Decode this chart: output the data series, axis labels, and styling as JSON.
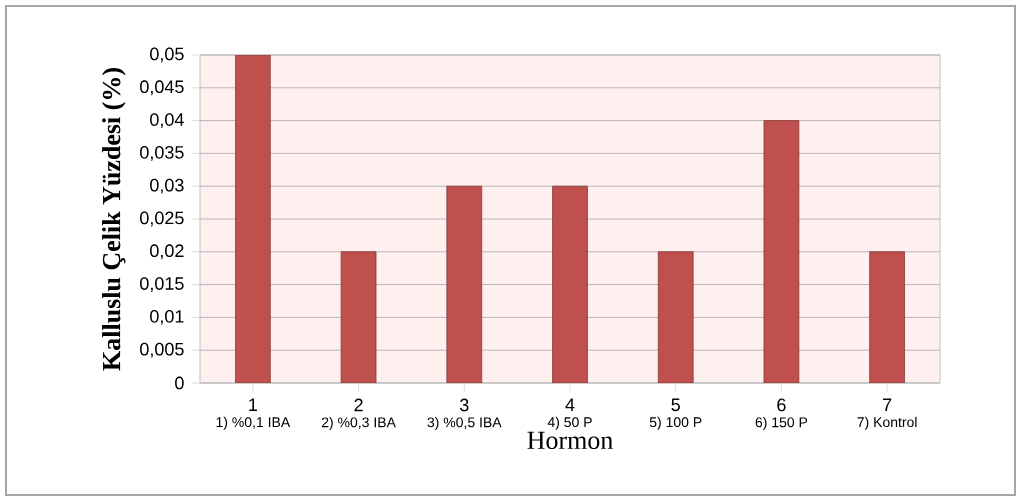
{
  "chart_data": {
    "type": "bar",
    "xlabel": "Hormon",
    "ylabel": "Kalluslu Çelik Yüzdesi (%)",
    "categories": [
      "1",
      "2",
      "3",
      "4",
      "5",
      "6",
      "7"
    ],
    "values": [
      0.05,
      0.02,
      0.03,
      0.03,
      0.02,
      0.04,
      0.02
    ],
    "color": "#c0504d",
    "ylim": [
      0,
      0.05
    ],
    "yticks": [
      0,
      {
        "value": 0.005,
        "label": "0,005"
      },
      {
        "value": 0.01,
        "label": "0,01"
      },
      {
        "value": 0.015,
        "label": "0,015"
      },
      {
        "value": 0.02,
        "label": "0,02"
      },
      {
        "value": 0.025,
        "label": "0,025"
      },
      {
        "value": 0.03,
        "label": "0,03"
      },
      {
        "value": 0.035,
        "label": "0,035"
      },
      {
        "value": 0.04,
        "label": "0,04"
      },
      {
        "value": 0.045,
        "label": "0,045"
      },
      {
        "value": 0.05,
        "label": "0,05"
      }
    ],
    "annotations": [
      "1) %0,1 IBA",
      "2) %0,3 IBA",
      "3) %0,5 IBA",
      "4) 50 P",
      "5) 100 P",
      "6) 150 P",
      "7) Kontrol"
    ],
    "grid": "y"
  }
}
